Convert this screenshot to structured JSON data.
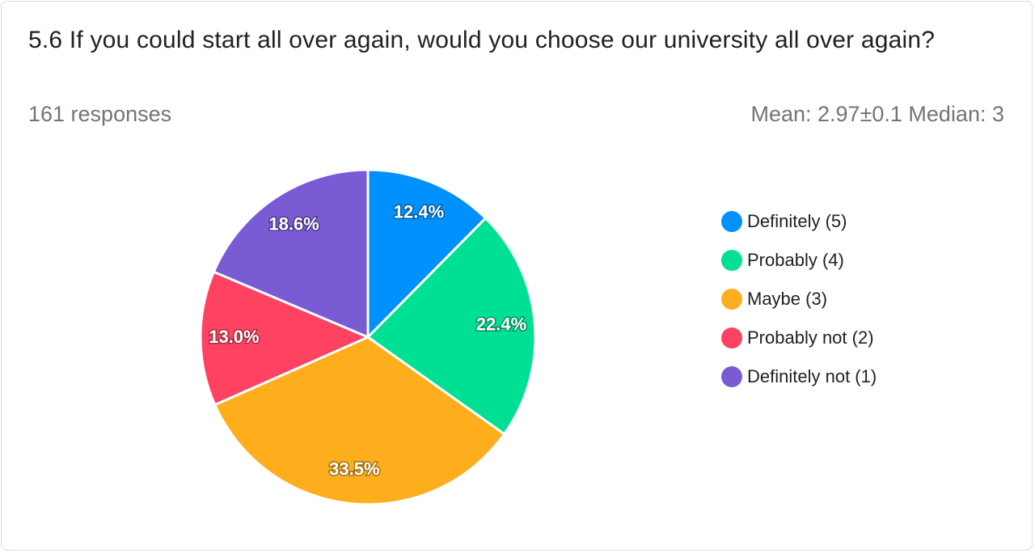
{
  "header": {
    "title": "5.6  If you could start all over again, would you choose our university all over again?",
    "responses": "161 responses",
    "stats": "Mean: 2.97±0.1 Median: 3"
  },
  "chart_data": {
    "type": "pie",
    "title": "5.6  If you could start all over again, would you choose our university all over again?",
    "categories": [
      "Definitely (5)",
      "Probably (4)",
      "Maybe (3)",
      "Probably not (2)",
      "Definitely not (1)"
    ],
    "values": [
      12.4,
      22.4,
      33.5,
      13.0,
      18.6
    ],
    "labels": [
      "12.4%",
      "22.4%",
      "33.5%",
      "13.0%",
      "18.6%"
    ],
    "colors": [
      "#0091ff",
      "#00e094",
      "#feae1c",
      "#ff4262",
      "#795bd4"
    ],
    "legend_position": "right"
  }
}
